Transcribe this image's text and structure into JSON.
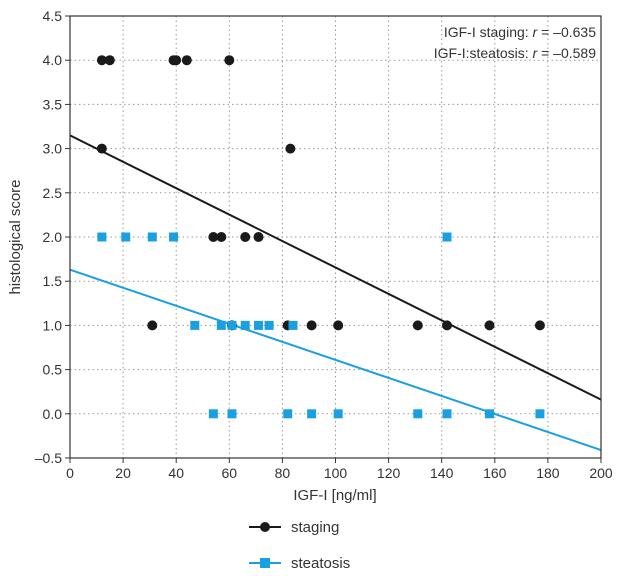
{
  "chart_data": {
    "type": "scatter",
    "xlabel": "IGF-I [ng/ml]",
    "ylabel": "histological score",
    "xlim": [
      0,
      200
    ],
    "ylim": [
      -0.5,
      4.5
    ],
    "xticks": [
      0,
      20,
      40,
      60,
      80,
      100,
      120,
      140,
      160,
      180,
      200
    ],
    "yticks": [
      -0.5,
      0.0,
      0.5,
      1.0,
      1.5,
      2.0,
      2.5,
      3.0,
      3.5,
      4.0,
      4.5
    ],
    "ytick_labels": [
      "–0.5",
      "0.0",
      "0.5",
      "1.0",
      "1.5",
      "2.0",
      "2.5",
      "3.0",
      "3.5",
      "4.0",
      "4.5"
    ],
    "grid": true,
    "legend_position": "bottom",
    "annotations": [
      {
        "label": "IGF-I staging: ",
        "r_symbol": "r",
        "r_value": " = –0.635"
      },
      {
        "label": "IGF-I:steatosis: ",
        "r_symbol": "r",
        "r_value": " = –0.589"
      }
    ],
    "series": [
      {
        "name": "staging",
        "color": "#1a1a1a",
        "marker": "circle",
        "points": [
          [
            12,
            4.0
          ],
          [
            15,
            4.0
          ],
          [
            39,
            4.0
          ],
          [
            40,
            4.0
          ],
          [
            44,
            4.0
          ],
          [
            60,
            4.0
          ],
          [
            12,
            3.0
          ],
          [
            83,
            3.0
          ],
          [
            54,
            2.0
          ],
          [
            57,
            2.0
          ],
          [
            66,
            2.0
          ],
          [
            71,
            2.0
          ],
          [
            31,
            1.0
          ],
          [
            61,
            1.0
          ],
          [
            82,
            1.0
          ],
          [
            91,
            1.0
          ],
          [
            101,
            1.0
          ],
          [
            131,
            1.0
          ],
          [
            142,
            1.0
          ],
          [
            158,
            1.0
          ],
          [
            177,
            1.0
          ]
        ],
        "trend": {
          "intercept": 3.15,
          "slope": -0.01495
        }
      },
      {
        "name": "steatosis",
        "color": "#1aa0e0",
        "marker": "square",
        "points": [
          [
            12,
            2.0
          ],
          [
            21,
            2.0
          ],
          [
            31,
            2.0
          ],
          [
            39,
            2.0
          ],
          [
            142,
            2.0
          ],
          [
            47,
            1.0
          ],
          [
            57,
            1.0
          ],
          [
            61,
            1.0
          ],
          [
            66,
            1.0
          ],
          [
            71,
            1.0
          ],
          [
            75,
            1.0
          ],
          [
            84,
            1.0
          ],
          [
            54,
            0.0
          ],
          [
            61,
            0.0
          ],
          [
            82,
            0.0
          ],
          [
            91,
            0.0
          ],
          [
            101,
            0.0
          ],
          [
            131,
            0.0
          ],
          [
            142,
            0.0
          ],
          [
            158,
            0.0
          ],
          [
            177,
            0.0
          ]
        ],
        "trend": {
          "intercept": 1.63,
          "slope": -0.0102
        }
      }
    ]
  }
}
